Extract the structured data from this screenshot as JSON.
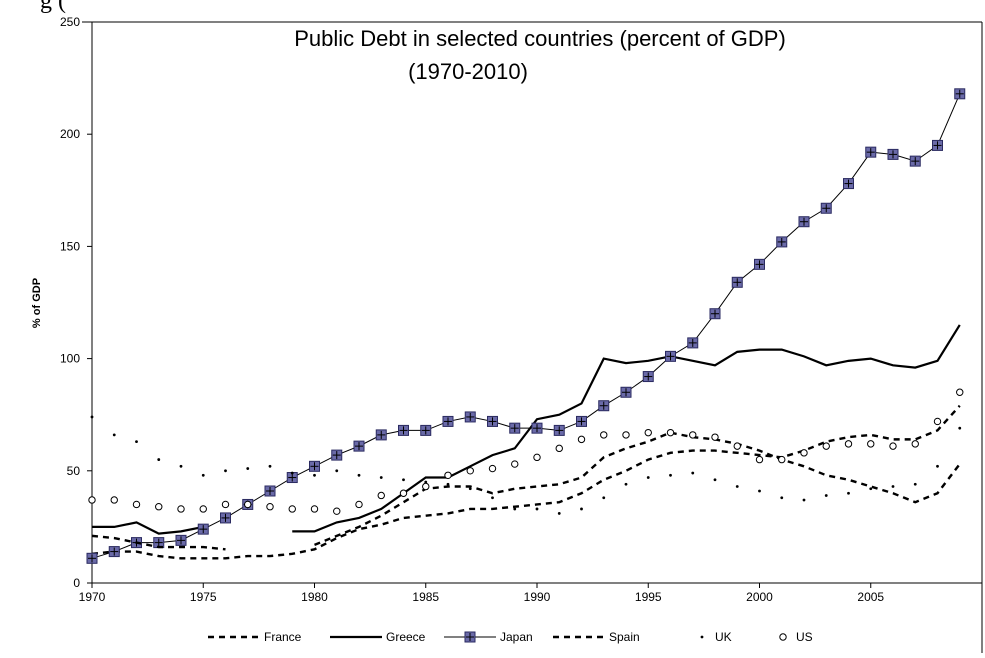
{
  "caption_text": "g                                                    (",
  "chart_data": {
    "type": "line",
    "title_line1": "Public Debt in selected countries (percent of GDP)",
    "title_line2": "(1970-2010)",
    "xlabel": "",
    "ylabel": "% of GDP",
    "xlim": [
      1970,
      2010
    ],
    "ylim": [
      0,
      250
    ],
    "x_ticks": [
      1970,
      1975,
      1980,
      1985,
      1990,
      1995,
      2000,
      2005
    ],
    "y_ticks": [
      0,
      50,
      100,
      150,
      200,
      250
    ],
    "grid": false,
    "legend_position": "bottom",
    "series": [
      {
        "name": "France",
        "style": "dashed",
        "x": [
          1970,
          1971,
          1972,
          1973,
          1974,
          1975,
          1976,
          1977,
          1978,
          1979,
          1980,
          1981,
          1982,
          1983,
          1984,
          1985,
          1986,
          1987,
          1988,
          1989,
          1990,
          1991,
          1992,
          1993,
          1994,
          1995,
          1996,
          1997,
          1998,
          1999,
          2000,
          2001,
          2002,
          2003,
          2004,
          2005,
          2006,
          2007,
          2008,
          2009
        ],
        "y": [
          13,
          14,
          14,
          12,
          11,
          11,
          11,
          12,
          12,
          13,
          15,
          20,
          24,
          26,
          29,
          30,
          31,
          33,
          33,
          34,
          35,
          36,
          40,
          46,
          50,
          55,
          58,
          59,
          59,
          58,
          57,
          56,
          59,
          63,
          65,
          66,
          64,
          64,
          68,
          79
        ]
      },
      {
        "name": "Greece",
        "style": "solid",
        "x": [
          1970,
          1971,
          1972,
          1973,
          1974,
          1975,
          null,
          1979,
          1980,
          1981,
          1982,
          1983,
          1984,
          1985,
          1986,
          1987,
          1988,
          1989,
          1990,
          1991,
          1992,
          1993,
          1994,
          1995,
          1996,
          1997,
          1998,
          1999,
          2000,
          2001,
          2002,
          2003,
          2004,
          2005,
          2006,
          2007,
          2008,
          2009
        ],
        "y": [
          25,
          25,
          27,
          22,
          23,
          25,
          null,
          23,
          23,
          27,
          29,
          33,
          40,
          47,
          47,
          52,
          57,
          60,
          73,
          75,
          80,
          100,
          98,
          99,
          101,
          99,
          97,
          103,
          104,
          104,
          101,
          97,
          99,
          100,
          97,
          96,
          99,
          115
        ]
      },
      {
        "name": "Japan",
        "style": "solid-marker",
        "x": [
          1970,
          1971,
          1972,
          1973,
          1974,
          1975,
          1976,
          1977,
          1978,
          1979,
          1980,
          1981,
          1982,
          1983,
          1984,
          1985,
          1986,
          1987,
          1988,
          1989,
          1990,
          1991,
          1992,
          1993,
          1994,
          1995,
          1996,
          1997,
          1998,
          1999,
          2000,
          2001,
          2002,
          2003,
          2004,
          2005,
          2006,
          2007,
          2008,
          2009
        ],
        "y": [
          11,
          14,
          18,
          18,
          19,
          24,
          29,
          35,
          41,
          47,
          52,
          57,
          61,
          66,
          68,
          68,
          72,
          74,
          72,
          69,
          69,
          68,
          72,
          79,
          85,
          92,
          101,
          107,
          120,
          134,
          142,
          152,
          161,
          167,
          178,
          192,
          191,
          188,
          195,
          218
        ]
      },
      {
        "name": "Spain",
        "style": "dashed",
        "x": [
          1970,
          1971,
          1972,
          1973,
          1974,
          1975,
          1976,
          null,
          1980,
          1981,
          1982,
          1983,
          1984,
          1985,
          1986,
          1987,
          1988,
          1989,
          1990,
          1991,
          1992,
          1993,
          1994,
          1995,
          1996,
          1997,
          1998,
          1999,
          2000,
          2001,
          2002,
          2003,
          2004,
          2005,
          2006,
          2007,
          2008,
          2009
        ],
        "y": [
          21,
          20,
          18,
          16,
          16,
          16,
          15,
          null,
          17,
          21,
          25,
          30,
          36,
          42,
          43,
          43,
          40,
          42,
          43,
          44,
          47,
          56,
          60,
          63,
          67,
          65,
          64,
          62,
          59,
          55,
          52,
          48,
          46,
          43,
          40,
          36,
          40,
          53
        ]
      },
      {
        "name": "UK",
        "style": "dots",
        "x": [
          1970,
          1971,
          1972,
          1973,
          1974,
          1975,
          1976,
          1977,
          1978,
          1979,
          1980,
          1981,
          1982,
          1983,
          1984,
          1985,
          1986,
          1987,
          1988,
          1989,
          1990,
          1991,
          1992,
          1993,
          1994,
          1995,
          1996,
          1997,
          1998,
          1999,
          2000,
          2001,
          2002,
          2003,
          2004,
          2005,
          2006,
          2007,
          2008,
          2009
        ],
        "y": [
          74,
          66,
          63,
          55,
          52,
          48,
          50,
          51,
          52,
          49,
          48,
          50,
          48,
          47,
          46,
          45,
          44,
          42,
          38,
          33,
          33,
          31,
          33,
          38,
          44,
          47,
          48,
          49,
          46,
          43,
          41,
          38,
          37,
          39,
          40,
          42,
          43,
          44,
          52,
          69
        ]
      },
      {
        "name": "US",
        "style": "open-circles",
        "x": [
          1970,
          1971,
          1972,
          1973,
          1974,
          1975,
          1976,
          1977,
          1978,
          1979,
          1980,
          1981,
          1982,
          1983,
          1984,
          1985,
          1986,
          1987,
          1988,
          1989,
          1990,
          1991,
          1992,
          1993,
          1994,
          1995,
          1996,
          1997,
          1998,
          1999,
          2000,
          2001,
          2002,
          2003,
          2004,
          2005,
          2006,
          2007,
          2008,
          2009
        ],
        "y": [
          37,
          37,
          35,
          34,
          33,
          33,
          35,
          35,
          34,
          33,
          33,
          32,
          35,
          39,
          40,
          43,
          48,
          50,
          51,
          53,
          56,
          60,
          64,
          66,
          66,
          67,
          67,
          66,
          65,
          61,
          55,
          55,
          58,
          61,
          62,
          62,
          61,
          62,
          72,
          85
        ]
      }
    ]
  }
}
